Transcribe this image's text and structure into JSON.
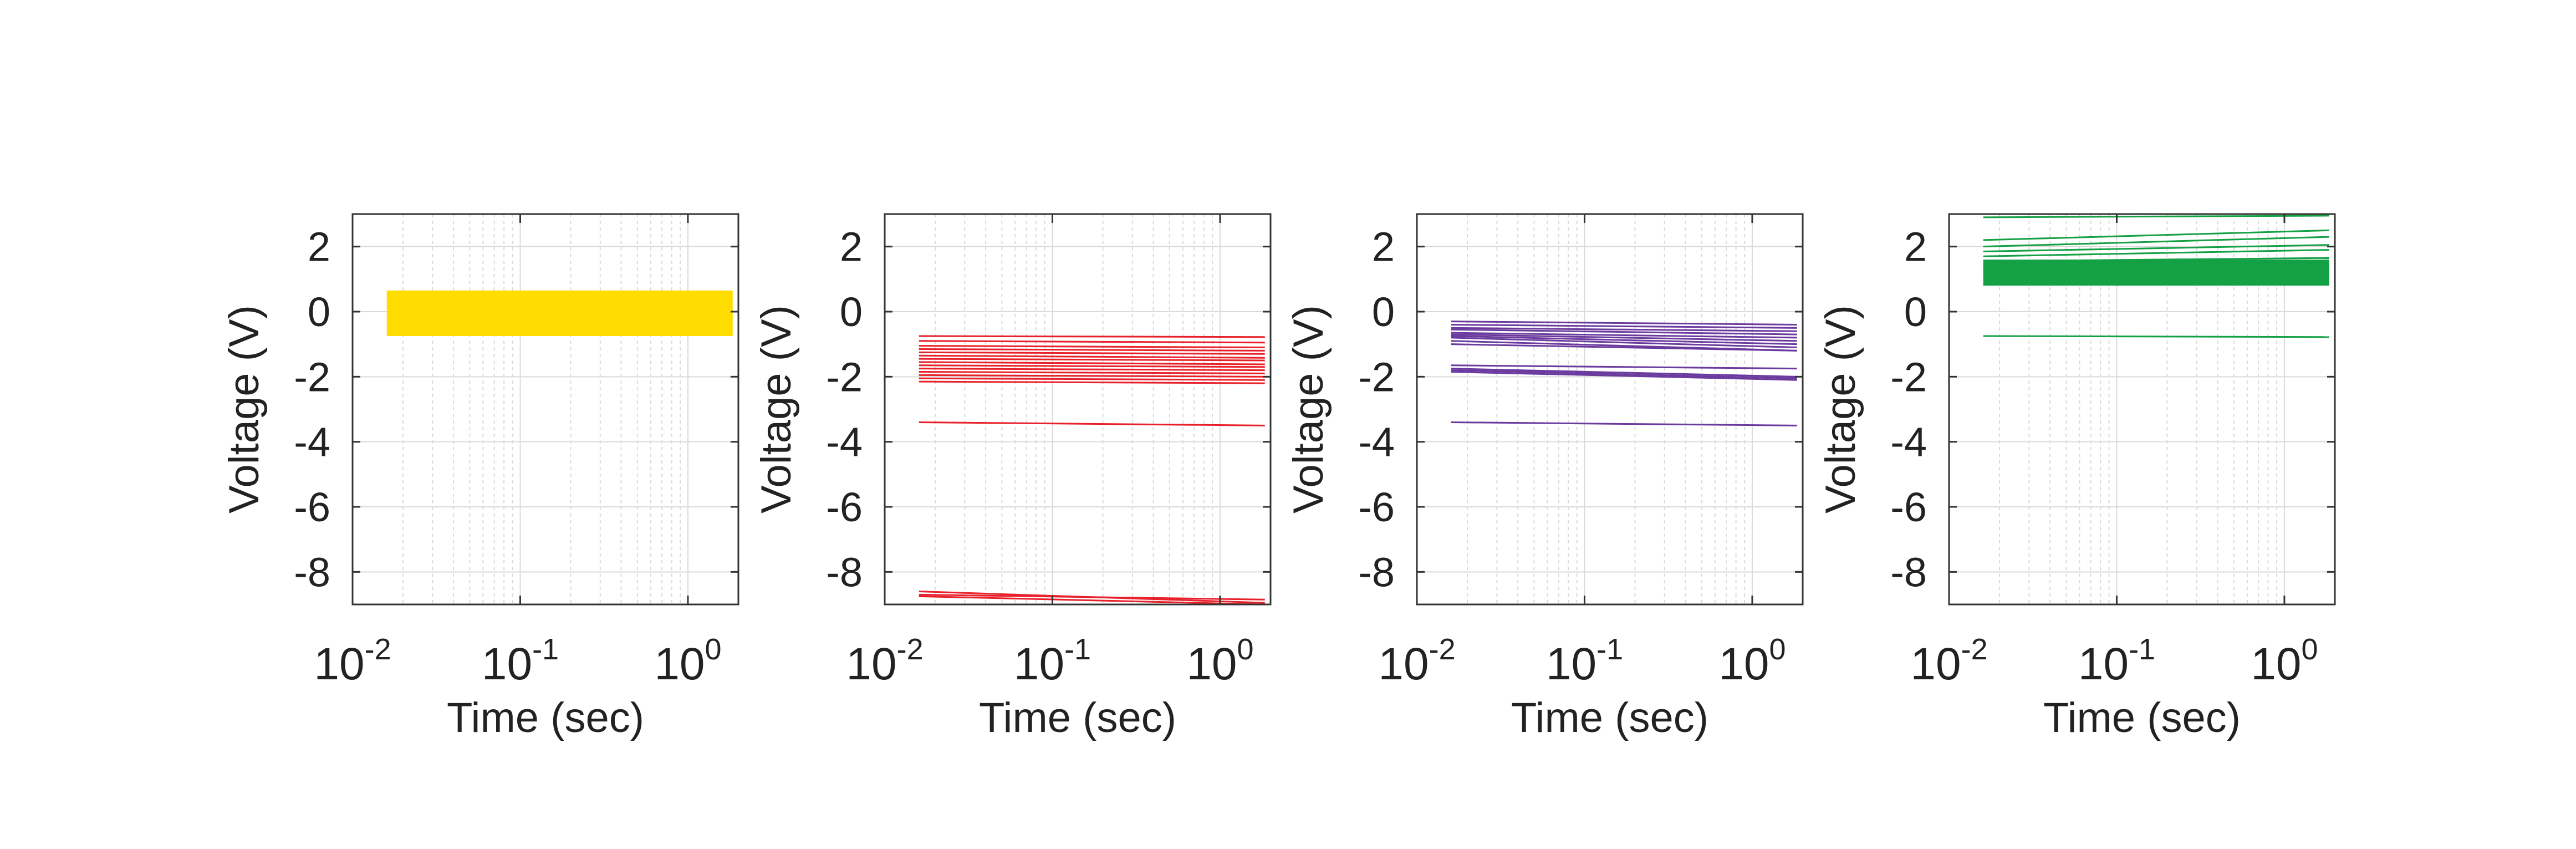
{
  "chart_data": [
    {
      "type": "line",
      "xscale": "log",
      "xlabel": "Time (sec)",
      "ylabel": "Voltage (V)",
      "xlim": [
        0.01,
        2
      ],
      "ylim": [
        -9,
        3
      ],
      "xticks": [
        {
          "value": 0.01,
          "base": "10",
          "exp": "-2"
        },
        {
          "value": 0.1,
          "base": "10",
          "exp": "-1"
        },
        {
          "value": 1,
          "base": "10",
          "exp": "0"
        }
      ],
      "yticks": [
        2,
        0,
        -2,
        -4,
        -6,
        -8
      ],
      "grid": true,
      "color": "#FFDD00",
      "x_start": 0.016,
      "x_end": 1.85,
      "bands": [
        {
          "low": -0.75,
          "high": 0.65
        }
      ],
      "traces": []
    },
    {
      "type": "line",
      "xscale": "log",
      "xlabel": "Time (sec)",
      "ylabel": "Voltage (V)",
      "xlim": [
        0.01,
        2
      ],
      "ylim": [
        -9,
        3
      ],
      "xticks": [
        {
          "value": 0.01,
          "base": "10",
          "exp": "-2"
        },
        {
          "value": 0.1,
          "base": "10",
          "exp": "-1"
        },
        {
          "value": 1,
          "base": "10",
          "exp": "0"
        }
      ],
      "yticks": [
        2,
        0,
        -2,
        -4,
        -6,
        -8
      ],
      "grid": true,
      "color": "#E8202A",
      "x_start": 0.016,
      "x_end": 1.85,
      "bands": [],
      "traces": [
        {
          "start": -0.75,
          "end": -0.78
        },
        {
          "start": -0.9,
          "end": -0.95
        },
        {
          "start": -1.05,
          "end": -1.1
        },
        {
          "start": -1.15,
          "end": -1.2
        },
        {
          "start": -1.25,
          "end": -1.3
        },
        {
          "start": -1.35,
          "end": -1.42
        },
        {
          "start": -1.45,
          "end": -1.5
        },
        {
          "start": -1.55,
          "end": -1.62
        },
        {
          "start": -1.65,
          "end": -1.7
        },
        {
          "start": -1.75,
          "end": -1.8
        },
        {
          "start": -1.85,
          "end": -1.9
        },
        {
          "start": -1.95,
          "end": -2.0
        },
        {
          "start": -2.05,
          "end": -2.1
        },
        {
          "start": -2.15,
          "end": -2.2
        },
        {
          "start": -3.4,
          "end": -3.5
        },
        {
          "start": -8.6,
          "end": -8.95
        },
        {
          "start": -8.7,
          "end": -8.85
        },
        {
          "start": -8.75,
          "end": -9.0
        }
      ]
    },
    {
      "type": "line",
      "xscale": "log",
      "xlabel": "Time (sec)",
      "ylabel": "Voltage (V)",
      "xlim": [
        0.01,
        2
      ],
      "ylim": [
        -9,
        3
      ],
      "xticks": [
        {
          "value": 0.01,
          "base": "10",
          "exp": "-2"
        },
        {
          "value": 0.1,
          "base": "10",
          "exp": "-1"
        },
        {
          "value": 1,
          "base": "10",
          "exp": "0"
        }
      ],
      "yticks": [
        2,
        0,
        -2,
        -4,
        -6,
        -8
      ],
      "grid": true,
      "color": "#6B3A9E",
      "x_start": 0.016,
      "x_end": 1.85,
      "bands": [],
      "traces": [
        {
          "start": -0.3,
          "end": -0.4
        },
        {
          "start": -0.4,
          "end": -0.5
        },
        {
          "start": -0.5,
          "end": -0.6
        },
        {
          "start": -0.55,
          "end": -0.7
        },
        {
          "start": -0.65,
          "end": -0.8
        },
        {
          "start": -0.7,
          "end": -0.9
        },
        {
          "start": -0.75,
          "end": -1.0
        },
        {
          "start": -0.8,
          "end": -1.1
        },
        {
          "start": -0.9,
          "end": -1.2
        },
        {
          "start": -1.0,
          "end": -1.2
        },
        {
          "start": -1.65,
          "end": -1.75
        },
        {
          "start": -1.75,
          "end": -2.0
        },
        {
          "start": -1.8,
          "end": -2.05
        },
        {
          "start": -1.85,
          "end": -2.1
        },
        {
          "start": -3.4,
          "end": -3.5
        }
      ]
    },
    {
      "type": "line",
      "xscale": "log",
      "xlabel": "Time (sec)",
      "ylabel": "Voltage (V)",
      "xlim": [
        0.01,
        2
      ],
      "ylim": [
        -9,
        3
      ],
      "xticks": [
        {
          "value": 0.01,
          "base": "10",
          "exp": "-2"
        },
        {
          "value": 0.1,
          "base": "10",
          "exp": "-1"
        },
        {
          "value": 1,
          "base": "10",
          "exp": "0"
        }
      ],
      "yticks": [
        2,
        0,
        -2,
        -4,
        -6,
        -8
      ],
      "grid": true,
      "color": "#14A045",
      "x_start": 0.016,
      "x_end": 1.85,
      "bands": [
        {
          "low": 0.8,
          "high": 1.6
        }
      ],
      "traces": [
        {
          "start": 2.9,
          "end": 2.95
        },
        {
          "start": 2.2,
          "end": 2.5
        },
        {
          "start": 2.0,
          "end": 2.3
        },
        {
          "start": 1.85,
          "end": 2.05
        },
        {
          "start": 1.7,
          "end": 1.9
        },
        {
          "start": 1.55,
          "end": 1.65
        },
        {
          "start": 1.45,
          "end": 1.5
        },
        {
          "start": 1.35,
          "end": 1.4
        },
        {
          "start": 1.25,
          "end": 1.3
        },
        {
          "start": 1.15,
          "end": 1.2
        },
        {
          "start": 1.05,
          "end": 1.1
        },
        {
          "start": 0.95,
          "end": 1.0
        },
        {
          "start": 0.85,
          "end": 0.9
        },
        {
          "start": -0.75,
          "end": -0.78
        }
      ]
    }
  ]
}
